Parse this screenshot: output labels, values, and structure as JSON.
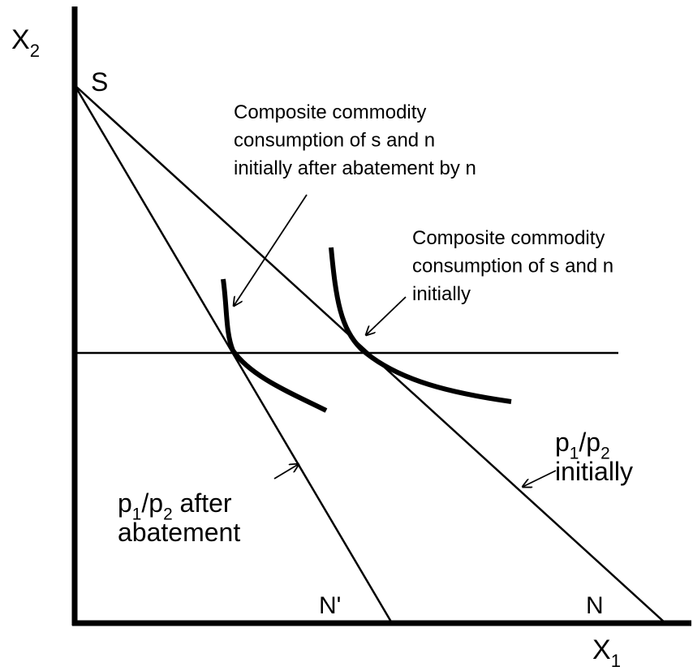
{
  "axes": {
    "y_label": [
      {
        "text": "X"
      },
      {
        "text": "2",
        "sub": true
      }
    ],
    "x_label": [
      {
        "text": "X"
      },
      {
        "text": "1",
        "sub": true
      }
    ]
  },
  "points": {
    "s": "S",
    "n": "N",
    "n_prime": "N'"
  },
  "annotations": [
    {
      "lines": [
        "Composite commodity",
        "consumption of s and n",
        "initially after abatement by n"
      ]
    },
    {
      "lines": [
        "Composite commodity",
        "consumption of s and n",
        "initially"
      ]
    }
  ],
  "price_labels": [
    {
      "lines": [
        [
          {
            "text": "p"
          },
          {
            "text": "1",
            "sub": true
          },
          {
            "text": "/p"
          },
          {
            "text": "2",
            "sub": true
          }
        ],
        [
          {
            "text": "initially"
          }
        ]
      ]
    },
    {
      "lines": [
        [
          {
            "text": "p"
          },
          {
            "text": "1",
            "sub": true
          },
          {
            "text": "/p"
          },
          {
            "text": "2",
            "sub": true
          },
          {
            "text": " after"
          }
        ],
        [
          {
            "text": "abatement"
          }
        ]
      ]
    }
  ]
}
